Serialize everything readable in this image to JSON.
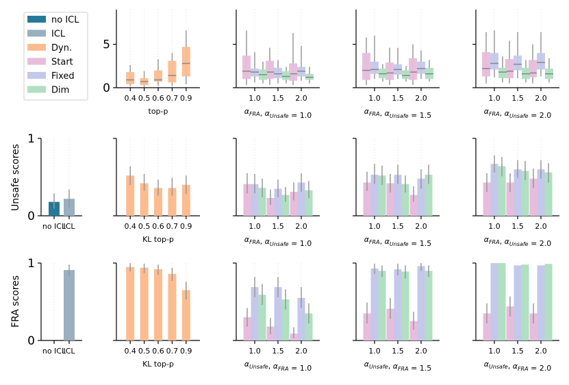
{
  "colors": {
    "no_icl": "#24799a",
    "icl": "#9aafc0",
    "dyn": "#fdbc8f",
    "start": "#e8bcdc",
    "fixed": "#c4c8eb",
    "dim": "#b0dfc2",
    "err": "#999999",
    "median": "#888888"
  },
  "legend": [
    "no ICL",
    "ICL",
    "Dyn.",
    "Start",
    "Fixed",
    "Dim"
  ],
  "row_labels": {
    "unsafe": "Unsafe scores",
    "fra": "FRA scores"
  },
  "chart_data": [
    {
      "panel": "box-topp",
      "type": "box",
      "yticks": [
        0,
        5
      ],
      "ylim": [
        0,
        9
      ],
      "categories": [
        "0.4",
        "0.5",
        "0.6",
        "0.7",
        "0.9"
      ],
      "xlabel": "top-p",
      "series": [
        {
          "name": "Dyn.",
          "boxes": [
            [
              0.2,
              0.4,
              0.9,
              1.8,
              2.6
            ],
            [
              0.1,
              0.3,
              0.7,
              1.1,
              1.9
            ],
            [
              0.2,
              0.7,
              0.9,
              2.0,
              3.3
            ],
            [
              0.2,
              0.6,
              1.4,
              3.1,
              4.0
            ],
            [
              0.4,
              1.3,
              2.8,
              4.7,
              6.6
            ]
          ]
        }
      ]
    },
    {
      "panel": "box-a1",
      "type": "box",
      "ylim": [
        0,
        9
      ],
      "categories": [
        "1.0",
        "1.5",
        "2.0"
      ],
      "xlabel": "α_FRA, α_Unsafe = 1.0",
      "series": [
        {
          "name": "Start",
          "boxes": [
            [
              0.3,
              1.0,
              1.9,
              3.7,
              6.6
            ],
            [
              0.3,
              1.0,
              1.8,
              3.1,
              4.6
            ],
            [
              0.3,
              0.8,
              1.6,
              2.8,
              6.3
            ]
          ]
        },
        {
          "name": "Fixed",
          "boxes": [
            [
              0.6,
              1.3,
              1.8,
              2.2,
              4.1
            ],
            [
              0.5,
              1.1,
              1.6,
              2.3,
              3.2
            ],
            [
              0.8,
              1.3,
              1.9,
              2.4,
              4.8
            ]
          ]
        },
        {
          "name": "Dim",
          "boxes": [
            [
              0.5,
              0.9,
              1.5,
              2.1,
              3.0
            ],
            [
              0.5,
              0.9,
              1.3,
              1.9,
              2.4
            ],
            [
              0.5,
              0.9,
              1.2,
              1.6,
              2.4
            ]
          ]
        }
      ]
    },
    {
      "panel": "box-a15",
      "type": "box",
      "ylim": [
        0,
        9
      ],
      "categories": [
        "1.0",
        "1.5",
        "2.0"
      ],
      "xlabel": "α_FRA, α_Unsafe = 1.5",
      "series": [
        {
          "name": "Start",
          "boxes": [
            [
              0.3,
              0.9,
              2.0,
              4.0,
              5.8
            ],
            [
              0.3,
              0.9,
              1.7,
              2.9,
              4.6
            ],
            [
              0.3,
              0.9,
              1.8,
              3.4,
              5.0
            ]
          ]
        },
        {
          "name": "Fixed",
          "boxes": [
            [
              1.0,
              1.6,
              2.1,
              3.0,
              6.0
            ],
            [
              1.0,
              1.5,
              2.1,
              2.7,
              4.6
            ],
            [
              1.0,
              1.6,
              2.2,
              3.0,
              4.3
            ]
          ]
        },
        {
          "name": "Dim",
          "boxes": [
            [
              0.7,
              1.1,
              1.6,
              2.2,
              2.7
            ],
            [
              0.7,
              1.0,
              1.4,
              2.0,
              2.5
            ],
            [
              0.7,
              1.0,
              1.6,
              2.3,
              3.2
            ]
          ]
        }
      ]
    },
    {
      "panel": "box-a2",
      "type": "box",
      "ylim": [
        0,
        9
      ],
      "categories": [
        "1.0",
        "1.5",
        "2.0"
      ],
      "xlabel": "α_FRA, α_Unsafe = 2.0",
      "series": [
        {
          "name": "Start",
          "boxes": [
            [
              0.5,
              1.3,
              2.2,
              4.1,
              6.4
            ],
            [
              0.5,
              1.1,
              1.9,
              3.3,
              5.4
            ],
            [
              0.5,
              1.2,
              1.7,
              3.2,
              5.0
            ]
          ]
        },
        {
          "name": "Fixed",
          "boxes": [
            [
              1.2,
              2.1,
              2.8,
              4.0,
              6.6
            ],
            [
              1.1,
              2.0,
              2.7,
              3.7,
              6.4
            ],
            [
              1.3,
              2.1,
              2.9,
              4.0,
              6.4
            ]
          ]
        },
        {
          "name": "Dim",
          "boxes": [
            [
              0.6,
              1.1,
              1.8,
              2.3,
              3.6
            ],
            [
              0.6,
              1.0,
              1.6,
              2.3,
              3.2
            ],
            [
              0.6,
              1.0,
              1.6,
              2.2,
              3.4
            ]
          ]
        }
      ]
    },
    {
      "panel": "bar-unsafe-icl",
      "type": "bar",
      "ylabel": "Unsafe scores",
      "yticks": [
        0,
        1
      ],
      "ylim": [
        0,
        1
      ],
      "categories": [
        "no ICL",
        "ICL"
      ],
      "bars": [
        {
          "color": "no_icl",
          "value": 0.18,
          "err": [
            0.09,
            0.29
          ]
        },
        {
          "color": "icl",
          "value": 0.22,
          "err": [
            0.11,
            0.34
          ]
        }
      ]
    },
    {
      "panel": "bar-unsafe-kl",
      "type": "bar",
      "ylim": [
        0,
        1
      ],
      "categories": [
        "0.4",
        "0.5",
        "0.6",
        "0.7",
        "0.9"
      ],
      "xlabel": "KL top-p",
      "series": [
        {
          "name": "Dyn.",
          "values": [
            0.52,
            0.42,
            0.36,
            0.36,
            0.4
          ],
          "err": [
            [
              0.4,
              0.64
            ],
            [
              0.32,
              0.54
            ],
            [
              0.26,
              0.47
            ],
            [
              0.26,
              0.49
            ],
            [
              0.28,
              0.52
            ]
          ]
        }
      ]
    },
    {
      "panel": "bar-unsafe-a1",
      "type": "bar",
      "ylim": [
        0,
        1
      ],
      "categories": [
        "1.0",
        "1.5",
        "2.0"
      ],
      "xlabel": "α_FRA, α_Unsafe = 1.0",
      "series": [
        {
          "name": "Start",
          "values": [
            0.41,
            0.23,
            0.31
          ],
          "err": [
            [
              0.29,
              0.55
            ],
            [
              0.14,
              0.34
            ],
            [
              0.2,
              0.43
            ]
          ]
        },
        {
          "name": "Fixed",
          "values": [
            0.41,
            0.35,
            0.43
          ],
          "err": [
            [
              0.29,
              0.54
            ],
            [
              0.24,
              0.47
            ],
            [
              0.31,
              0.55
            ]
          ]
        },
        {
          "name": "Dim",
          "values": [
            0.36,
            0.27,
            0.33
          ],
          "err": [
            [
              0.24,
              0.48
            ],
            [
              0.18,
              0.37
            ],
            [
              0.23,
              0.45
            ]
          ]
        }
      ]
    },
    {
      "panel": "bar-unsafe-a15",
      "type": "bar",
      "ylim": [
        0,
        1
      ],
      "categories": [
        "1.0",
        "1.5",
        "2.0"
      ],
      "xlabel": "α_FRA, α_Unsafe = 1.5",
      "series": [
        {
          "name": "Start",
          "values": [
            0.43,
            0.42,
            0.27
          ],
          "err": [
            [
              0.32,
              0.57
            ],
            [
              0.3,
              0.54
            ],
            [
              0.18,
              0.38
            ]
          ]
        },
        {
          "name": "Fixed",
          "values": [
            0.53,
            0.53,
            0.48
          ],
          "err": [
            [
              0.41,
              0.67
            ],
            [
              0.41,
              0.66
            ],
            [
              0.35,
              0.6
            ]
          ]
        },
        {
          "name": "Dim",
          "values": [
            0.52,
            0.41,
            0.53
          ],
          "err": [
            [
              0.4,
              0.65
            ],
            [
              0.3,
              0.52
            ],
            [
              0.41,
              0.66
            ]
          ]
        }
      ]
    },
    {
      "panel": "bar-unsafe-a2",
      "type": "bar",
      "ylim": [
        0,
        1
      ],
      "categories": [
        "1.0",
        "1.5",
        "2.0"
      ],
      "xlabel": "α_FRA, α_Unsafe = 2.0",
      "series": [
        {
          "name": "Start",
          "values": [
            0.43,
            0.43,
            0.48
          ],
          "err": [
            [
              0.31,
              0.55
            ],
            [
              0.31,
              0.55
            ],
            [
              0.36,
              0.61
            ]
          ]
        },
        {
          "name": "Fixed",
          "values": [
            0.67,
            0.6,
            0.6
          ],
          "err": [
            [
              0.56,
              0.78
            ],
            [
              0.49,
              0.72
            ],
            [
              0.48,
              0.72
            ]
          ]
        },
        {
          "name": "Dim",
          "values": [
            0.64,
            0.58,
            0.56
          ],
          "err": [
            [
              0.51,
              0.76
            ],
            [
              0.46,
              0.71
            ],
            [
              0.43,
              0.68
            ]
          ]
        }
      ]
    },
    {
      "panel": "bar-fra-icl",
      "type": "bar",
      "ylabel": "FRA scores",
      "yticks": [
        0,
        1
      ],
      "ylim": [
        0,
        1
      ],
      "categories": [
        "no ICL",
        "ICL"
      ],
      "bars": [
        {
          "color": "no_icl",
          "value": 0.0,
          "err": null
        },
        {
          "color": "icl",
          "value": 0.91,
          "err": [
            0.83,
            0.98
          ]
        }
      ]
    },
    {
      "panel": "bar-fra-kl",
      "type": "bar",
      "ylim": [
        0,
        1
      ],
      "categories": [
        "0.4",
        "0.5",
        "0.6",
        "0.7",
        "0.9"
      ],
      "xlabel": "KL top-p",
      "series": [
        {
          "name": "Dyn.",
          "values": [
            0.95,
            0.94,
            0.92,
            0.86,
            0.65
          ],
          "err": [
            [
              0.89,
              1.0
            ],
            [
              0.87,
              0.99
            ],
            [
              0.85,
              0.98
            ],
            [
              0.77,
              0.94
            ],
            [
              0.53,
              0.76
            ]
          ]
        }
      ]
    },
    {
      "panel": "bar-fra-a1",
      "type": "bar",
      "ylim": [
        0,
        1
      ],
      "categories": [
        "1.0",
        "1.5",
        "2.0"
      ],
      "xlabel": "α_Unsafe, α_FRA = 1.0",
      "series": [
        {
          "name": "Start",
          "values": [
            0.3,
            0.18,
            0.09
          ],
          "err": [
            [
              0.18,
              0.42
            ],
            [
              0.08,
              0.29
            ],
            [
              0.03,
              0.17
            ]
          ]
        },
        {
          "name": "Fixed",
          "values": [
            0.69,
            0.69,
            0.55
          ],
          "err": [
            [
              0.56,
              0.82
            ],
            [
              0.56,
              0.82
            ],
            [
              0.42,
              0.69
            ]
          ]
        },
        {
          "name": "Dim",
          "values": [
            0.59,
            0.53,
            0.35
          ],
          "err": [
            [
              0.46,
              0.73
            ],
            [
              0.4,
              0.66
            ],
            [
              0.22,
              0.48
            ]
          ]
        }
      ]
    },
    {
      "panel": "bar-fra-a15",
      "type": "bar",
      "ylim": [
        0,
        1
      ],
      "categories": [
        "1.0",
        "1.5",
        "2.0"
      ],
      "xlabel": "α_Unsafe, α_FRA = 1.5",
      "series": [
        {
          "name": "Start",
          "values": [
            0.35,
            0.41,
            0.25
          ],
          "err": [
            [
              0.22,
              0.49
            ],
            [
              0.28,
              0.55
            ],
            [
              0.14,
              0.37
            ]
          ]
        },
        {
          "name": "Fixed",
          "values": [
            0.93,
            0.92,
            0.96
          ],
          "err": [
            [
              0.86,
              0.99
            ],
            [
              0.84,
              0.99
            ],
            [
              0.9,
              1.0
            ]
          ]
        },
        {
          "name": "Dim",
          "values": [
            0.9,
            0.89,
            0.9
          ],
          "err": [
            [
              0.82,
              0.97
            ],
            [
              0.8,
              0.97
            ],
            [
              0.82,
              0.97
            ]
          ]
        }
      ]
    },
    {
      "panel": "bar-fra-a2",
      "type": "bar",
      "ylim": [
        0,
        1
      ],
      "categories": [
        "1.0",
        "1.5",
        "2.0"
      ],
      "xlabel": "α_Unsafe, α_FRA = 2.0",
      "series": [
        {
          "name": "Start",
          "values": [
            0.35,
            0.44,
            0.35
          ],
          "err": [
            [
              0.22,
              0.48
            ],
            [
              0.31,
              0.57
            ],
            [
              0.22,
              0.48
            ]
          ]
        },
        {
          "name": "Fixed",
          "values": [
            1.0,
            0.97,
            0.97
          ],
          "err": null
        },
        {
          "name": "Dim",
          "values": [
            1.0,
            0.98,
            0.99
          ],
          "err": null
        }
      ]
    }
  ]
}
